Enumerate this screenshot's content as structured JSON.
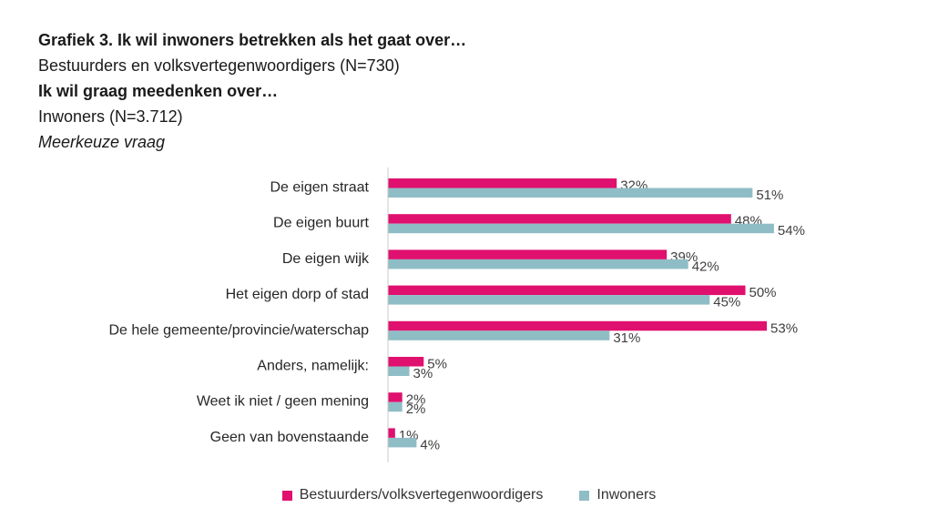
{
  "colors": {
    "bestuurders": "#e0106e",
    "inwoners": "#8fbdc6"
  },
  "header": {
    "line1": "Grafiek 3. Ik wil inwoners betrekken als het gaat over…",
    "line2": "Bestuurders en volksvertegenwoordigers (N=730)",
    "line3": "Ik wil graag meedenken over…",
    "line4": "Inwoners (N=3.712)",
    "line5": "Meerkeuze vraag"
  },
  "chart_data": {
    "type": "bar",
    "orientation": "horizontal",
    "categories": [
      "De eigen straat",
      "De eigen buurt",
      "De eigen wijk",
      "Het eigen dorp of stad",
      "De hele gemeente/provincie/waterschap",
      "Anders, namelijk:",
      "Weet ik niet / geen mening",
      "Geen van bovenstaande"
    ],
    "series": [
      {
        "name": "Bestuurders/volksvertegenwoordigers",
        "values": [
          32,
          48,
          39,
          50,
          53,
          5,
          2,
          1
        ],
        "labels": [
          "32%",
          "48%",
          "39%",
          "50%",
          "53%",
          "5%",
          "2%",
          "1%"
        ]
      },
      {
        "name": "Inwoners",
        "values": [
          51,
          54,
          42,
          45,
          31,
          3,
          2,
          4
        ],
        "labels": [
          "51%",
          "54%",
          "42%",
          "45%",
          "31%",
          "3%",
          "2%",
          "4%"
        ]
      }
    ],
    "xlim": [
      0,
      60
    ],
    "grid": false,
    "legend_position": "bottom"
  }
}
